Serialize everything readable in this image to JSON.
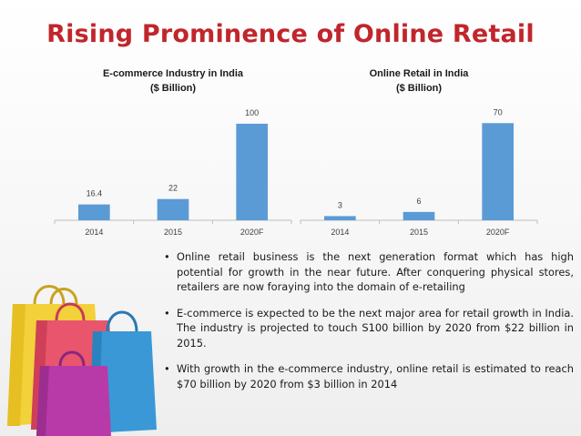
{
  "title": "Rising Prominence of Online Retail",
  "colors": {
    "title": "#c0262c",
    "bar": "#5b9bd5",
    "axis": "#bfbfbf",
    "text": "#404040"
  },
  "chart_data": [
    {
      "type": "bar",
      "title_line1": "E-commerce Industry in India",
      "title_line2": "($ Billion)",
      "categories": [
        "2014",
        "2015",
        "2020F"
      ],
      "values": [
        16.4,
        22,
        100
      ],
      "value_labels": [
        "16.4",
        "22",
        "100"
      ],
      "ylim": [
        0,
        115
      ],
      "grid": false,
      "legend": "none"
    },
    {
      "type": "bar",
      "title_line1": "Online Retail in India",
      "title_line2": "($ Billion)",
      "categories": [
        "2014",
        "2015",
        "2020F"
      ],
      "values": [
        3,
        6,
        70
      ],
      "value_labels": [
        "3",
        "6",
        "70"
      ],
      "ylim": [
        0,
        80
      ],
      "grid": false,
      "legend": "none"
    }
  ],
  "bullets": [
    "Online retail business is the next generation format which has high potential for growth in the near future. After conquering physical stores, retailers are now foraying into the domain of e-retailing",
    "E-commerce is expected to be the next major area for retail growth in India. The industry is projected to touch S100 billion by 2020 from $22 billion in 2015.",
    "With growth in the e-commerce industry, online retail is estimated to reach $70 billion by 2020 from $3 billion in 2014"
  ],
  "bullet_symbol": "•",
  "bags_illustration": {
    "colors": [
      "#f2d13a",
      "#e8556d",
      "#3a98d6",
      "#b83aa8"
    ]
  }
}
